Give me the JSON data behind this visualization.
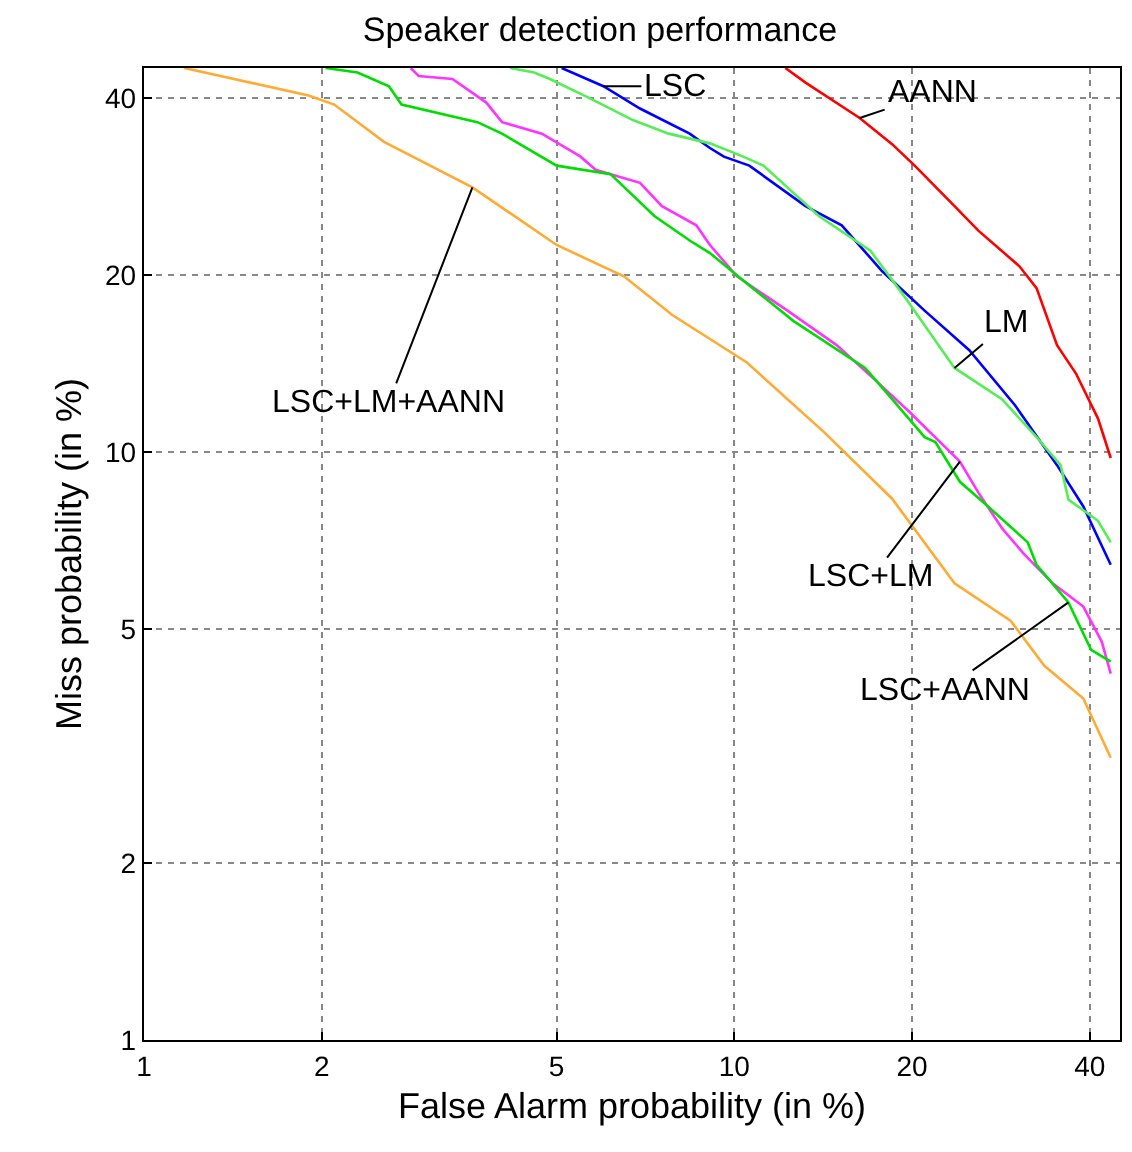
{
  "chart_data": {
    "type": "line",
    "title": "Speaker detection performance",
    "xlabel": "False Alarm probability (in %)",
    "ylabel": "Miss probability (in %)",
    "xlim": [
      1,
      45
    ],
    "ylim": [
      1,
      45
    ],
    "xticks": [
      1,
      2,
      5,
      10,
      20,
      40
    ],
    "yticks": [
      1,
      2,
      5,
      10,
      20,
      40
    ],
    "grid": true,
    "log": "xy",
    "line_style": "solid",
    "marker": "none",
    "series": [
      {
        "color": "#0000ff",
        "x": [
          5.1,
          6.0,
          6.92,
          8.4,
          9.09,
          9.6,
          10.6,
          13.2,
          15.2,
          17.8,
          21.0,
          25.0,
          29.9,
          35.2,
          39.0,
          43.4
        ],
        "values": [
          45,
          41.9,
          38.4,
          34.8,
          32.9,
          31.8,
          30.7,
          26.2,
          24.3,
          20.3,
          17.4,
          14.9,
          12.0,
          9.5,
          8.08,
          6.43
        ]
      },
      {
        "color": "#55ee55",
        "x": [
          4.17,
          4.58,
          4.87,
          5.65,
          6.73,
          7.74,
          9.09,
          10.35,
          11.2,
          13.9,
          17.0,
          19.4,
          23.6,
          28.4,
          32.5,
          35.7,
          36.8,
          41.3,
          43.4
        ],
        "values": [
          45,
          44.2,
          43.1,
          40.1,
          36.7,
          34.8,
          33.5,
          31.8,
          30.7,
          25.2,
          22.0,
          18.4,
          13.9,
          12.3,
          10.6,
          9.5,
          8.3,
          7.64,
          7.02
        ]
      },
      {
        "color": "#ff0000",
        "x": [
          12.2,
          13.2,
          16.3,
          18.5,
          20.2,
          23.6,
          25.9,
          30.4,
          32.5,
          35.2,
          37.9,
          41.3,
          43.4
        ],
        "values": [
          45,
          42.5,
          37.0,
          33.4,
          30.7,
          26.2,
          23.8,
          20.7,
          19.0,
          15.2,
          13.6,
          11.4,
          9.77
        ]
      },
      {
        "color": "#ff33ff",
        "x": [
          2.83,
          2.92,
          3.33,
          3.8,
          4.04,
          4.72,
          5.49,
          5.82,
          6.92,
          7.54,
          8.62,
          9.09,
          10.1,
          12.3,
          14.9,
          17.4,
          19.8,
          24.1,
          25.9,
          28.4,
          30.9,
          34.6,
          39.0,
          41.9,
          43.4
        ],
        "values": [
          45,
          43.6,
          43.1,
          39.3,
          36.4,
          34.8,
          31.8,
          30.2,
          28.7,
          26.2,
          24.3,
          22.5,
          19.9,
          17.4,
          15.2,
          13.2,
          11.7,
          9.63,
          8.53,
          7.42,
          6.72,
          5.98,
          5.46,
          4.76,
          4.2
        ]
      },
      {
        "color": "#00dd00",
        "x": [
          2.03,
          2.3,
          2.6,
          2.73,
          3.67,
          4.04,
          5.0,
          6.17,
          7.32,
          8.4,
          9.09,
          10.6,
          12.6,
          16.65,
          18.5,
          21.0,
          21.9,
          24.1,
          26.9,
          31.4,
          32.5,
          36.8,
          40.2,
          43.4
        ],
        "values": [
          45,
          44.2,
          41.9,
          39.0,
          36.4,
          34.8,
          30.7,
          29.7,
          25.2,
          22.9,
          21.8,
          19.2,
          16.7,
          13.9,
          12.3,
          10.6,
          10.4,
          8.9,
          8.08,
          7.02,
          6.43,
          5.55,
          4.61,
          4.4
        ]
      },
      {
        "color": "#ffaa33",
        "x": [
          1.17,
          1.9,
          2.1,
          2.55,
          3.6,
          5.0,
          6.5,
          7.85,
          10.5,
          14.2,
          18.5,
          23.6,
          29.4,
          33.5,
          39.0,
          43.4
        ],
        "values": [
          45,
          40.4,
          39.0,
          33.7,
          28.2,
          22.5,
          19.9,
          17.1,
          14.2,
          10.8,
          8.33,
          5.98,
          5.16,
          4.33,
          3.81,
          3.02
        ]
      }
    ],
    "annotations": [
      {
        "text": "LSC",
        "x": 6.0,
        "y": 41.9
      },
      {
        "text": "LM",
        "x": 23.6,
        "y": 13.9
      },
      {
        "text": "AANN",
        "x": 16.3,
        "y": 37.0
      },
      {
        "text": "LSC+LM",
        "x": 24.1,
        "y": 9.63
      },
      {
        "text": "LSC+AANN",
        "x": 36.8,
        "y": 5.55
      },
      {
        "text": "LSC+LM+AANN",
        "x": 3.6,
        "y": 28.2
      }
    ]
  }
}
